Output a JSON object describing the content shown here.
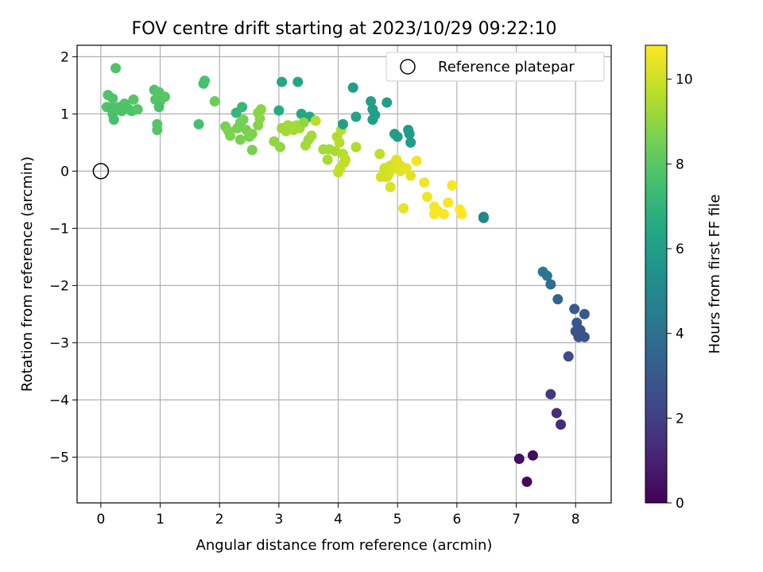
{
  "chart_data": {
    "type": "scatter",
    "title": "FOV centre drift starting at 2023/10/29 09:22:10",
    "xlabel": "Angular distance from reference (arcmin)",
    "ylabel": "Rotation from reference (arcmin)",
    "xlim": [
      -0.4,
      8.6
    ],
    "ylim": [
      -5.8,
      2.2
    ],
    "xticks": [
      0,
      1,
      2,
      3,
      4,
      5,
      6,
      7,
      8
    ],
    "yticks": [
      -5,
      -4,
      -3,
      -2,
      -1,
      0,
      1,
      2
    ],
    "grid": true,
    "legend": {
      "position": "top-right",
      "entries": [
        "Reference platepar"
      ]
    },
    "reference": {
      "x": 0,
      "y": 0,
      "label": "Reference platepar"
    },
    "colorbar": {
      "label": "Hours from first FF file",
      "range": [
        0,
        10.8
      ],
      "ticks": [
        0,
        2,
        4,
        6,
        8,
        10
      ],
      "colormap": "viridis"
    },
    "points": [
      {
        "x": 0.25,
        "y": 1.8,
        "h": 7.8
      },
      {
        "x": 0.12,
        "y": 1.33,
        "h": 7.8
      },
      {
        "x": 0.2,
        "y": 1.27,
        "h": 7.8
      },
      {
        "x": 0.1,
        "y": 1.12,
        "h": 7.8
      },
      {
        "x": 0.2,
        "y": 1.1,
        "h": 7.7
      },
      {
        "x": 0.3,
        "y": 1.12,
        "h": 7.8
      },
      {
        "x": 0.4,
        "y": 1.18,
        "h": 7.8
      },
      {
        "x": 0.45,
        "y": 1.1,
        "h": 7.8
      },
      {
        "x": 0.55,
        "y": 1.25,
        "h": 7.9
      },
      {
        "x": 0.52,
        "y": 1.05,
        "h": 7.8
      },
      {
        "x": 0.62,
        "y": 1.08,
        "h": 7.9
      },
      {
        "x": 0.2,
        "y": 1.0,
        "h": 7.7
      },
      {
        "x": 0.22,
        "y": 0.9,
        "h": 7.6
      },
      {
        "x": 0.35,
        "y": 1.05,
        "h": 7.7
      },
      {
        "x": 0.9,
        "y": 1.42,
        "h": 7.8
      },
      {
        "x": 0.98,
        "y": 1.38,
        "h": 7.9
      },
      {
        "x": 0.92,
        "y": 1.25,
        "h": 7.9
      },
      {
        "x": 1.0,
        "y": 1.22,
        "h": 7.9
      },
      {
        "x": 1.08,
        "y": 1.3,
        "h": 8.0
      },
      {
        "x": 0.98,
        "y": 1.12,
        "h": 7.7
      },
      {
        "x": 0.95,
        "y": 0.82,
        "h": 7.9
      },
      {
        "x": 0.95,
        "y": 0.72,
        "h": 7.9
      },
      {
        "x": 1.75,
        "y": 1.58,
        "h": 7.7
      },
      {
        "x": 1.73,
        "y": 1.53,
        "h": 7.6
      },
      {
        "x": 1.92,
        "y": 1.22,
        "h": 8.4
      },
      {
        "x": 1.65,
        "y": 0.82,
        "h": 7.6
      },
      {
        "x": 2.1,
        "y": 0.78,
        "h": 8.6
      },
      {
        "x": 2.15,
        "y": 0.7,
        "h": 8.7
      },
      {
        "x": 2.18,
        "y": 0.62,
        "h": 8.7
      },
      {
        "x": 2.3,
        "y": 0.75,
        "h": 8.6
      },
      {
        "x": 2.35,
        "y": 0.85,
        "h": 8.5
      },
      {
        "x": 2.4,
        "y": 0.9,
        "h": 8.5
      },
      {
        "x": 2.28,
        "y": 1.02,
        "h": 7.1
      },
      {
        "x": 2.38,
        "y": 1.12,
        "h": 7.2
      },
      {
        "x": 2.45,
        "y": 0.72,
        "h": 8.6
      },
      {
        "x": 2.35,
        "y": 0.55,
        "h": 8.6
      },
      {
        "x": 2.5,
        "y": 0.6,
        "h": 8.6
      },
      {
        "x": 2.55,
        "y": 0.65,
        "h": 8.7
      },
      {
        "x": 2.55,
        "y": 0.37,
        "h": 8.6
      },
      {
        "x": 2.65,
        "y": 1.02,
        "h": 8.9
      },
      {
        "x": 2.7,
        "y": 1.08,
        "h": 8.9
      },
      {
        "x": 2.68,
        "y": 0.92,
        "h": 8.9
      },
      {
        "x": 2.65,
        "y": 0.8,
        "h": 8.8
      },
      {
        "x": 3.0,
        "y": 1.06,
        "h": 6.6
      },
      {
        "x": 3.05,
        "y": 1.56,
        "h": 6.5
      },
      {
        "x": 3.32,
        "y": 1.56,
        "h": 6.5
      },
      {
        "x": 2.92,
        "y": 0.52,
        "h": 9.0
      },
      {
        "x": 3.02,
        "y": 0.42,
        "h": 9.0
      },
      {
        "x": 3.05,
        "y": 0.75,
        "h": 9.2
      },
      {
        "x": 3.12,
        "y": 0.7,
        "h": 9.3
      },
      {
        "x": 3.15,
        "y": 0.8,
        "h": 9.3
      },
      {
        "x": 3.2,
        "y": 0.78,
        "h": 9.3
      },
      {
        "x": 3.25,
        "y": 0.72,
        "h": 9.3
      },
      {
        "x": 3.3,
        "y": 0.8,
        "h": 9.3
      },
      {
        "x": 3.38,
        "y": 1.0,
        "h": 6.4
      },
      {
        "x": 3.35,
        "y": 0.75,
        "h": 9.3
      },
      {
        "x": 3.45,
        "y": 0.92,
        "h": 6.4
      },
      {
        "x": 3.52,
        "y": 0.95,
        "h": 6.5
      },
      {
        "x": 3.42,
        "y": 0.85,
        "h": 9.0
      },
      {
        "x": 3.5,
        "y": 0.55,
        "h": 9.2
      },
      {
        "x": 3.55,
        "y": 0.62,
        "h": 9.3
      },
      {
        "x": 3.45,
        "y": 0.45,
        "h": 9.3
      },
      {
        "x": 3.62,
        "y": 0.88,
        "h": 9.6
      },
      {
        "x": 3.75,
        "y": 0.38,
        "h": 9.3
      },
      {
        "x": 3.85,
        "y": 0.38,
        "h": 9.3
      },
      {
        "x": 3.82,
        "y": 0.2,
        "h": 9.4
      },
      {
        "x": 3.95,
        "y": 0.35,
        "h": 9.4
      },
      {
        "x": 3.98,
        "y": 0.6,
        "h": 9.5
      },
      {
        "x": 4.05,
        "y": 0.72,
        "h": 9.6
      },
      {
        "x": 4.02,
        "y": 0.5,
        "h": 9.6
      },
      {
        "x": 4.08,
        "y": 0.3,
        "h": 9.6
      },
      {
        "x": 4.1,
        "y": 0.15,
        "h": 9.7
      },
      {
        "x": 4.03,
        "y": 0.05,
        "h": 9.8
      },
      {
        "x": 4.0,
        "y": -0.02,
        "h": 9.8
      },
      {
        "x": 4.12,
        "y": 0.2,
        "h": 9.7
      },
      {
        "x": 4.3,
        "y": 0.42,
        "h": 9.5
      },
      {
        "x": 4.08,
        "y": 0.82,
        "h": 6.1
      },
      {
        "x": 4.25,
        "y": 1.46,
        "h": 6.0
      },
      {
        "x": 4.3,
        "y": 0.95,
        "h": 6.3
      },
      {
        "x": 4.55,
        "y": 1.22,
        "h": 6.1
      },
      {
        "x": 4.58,
        "y": 1.08,
        "h": 6.0
      },
      {
        "x": 4.62,
        "y": 0.98,
        "h": 6.0
      },
      {
        "x": 4.58,
        "y": 0.9,
        "h": 6.1
      },
      {
        "x": 4.82,
        "y": 1.2,
        "h": 6.0
      },
      {
        "x": 4.95,
        "y": 0.65,
        "h": 6.1
      },
      {
        "x": 5.0,
        "y": 0.6,
        "h": 6.0
      },
      {
        "x": 5.18,
        "y": 0.72,
        "h": 5.9
      },
      {
        "x": 5.2,
        "y": 0.65,
        "h": 5.9
      },
      {
        "x": 5.22,
        "y": 0.5,
        "h": 5.9
      },
      {
        "x": 4.7,
        "y": 0.3,
        "h": 9.7
      },
      {
        "x": 4.78,
        "y": 0.05,
        "h": 10.0
      },
      {
        "x": 4.72,
        "y": -0.1,
        "h": 10.0
      },
      {
        "x": 4.85,
        "y": -0.05,
        "h": 10.1
      },
      {
        "x": 4.82,
        "y": -0.1,
        "h": 10.1
      },
      {
        "x": 4.88,
        "y": 0.1,
        "h": 10.1
      },
      {
        "x": 4.95,
        "y": 0.05,
        "h": 10.2
      },
      {
        "x": 4.98,
        "y": 0.2,
        "h": 10.3
      },
      {
        "x": 5.05,
        "y": 0.1,
        "h": 10.3
      },
      {
        "x": 5.05,
        "y": 0.0,
        "h": 10.3
      },
      {
        "x": 5.15,
        "y": 0.05,
        "h": 10.4
      },
      {
        "x": 5.22,
        "y": -0.08,
        "h": 10.3
      },
      {
        "x": 4.88,
        "y": -0.28,
        "h": 10.2
      },
      {
        "x": 5.1,
        "y": -0.65,
        "h": 10.4
      },
      {
        "x": 5.32,
        "y": 0.18,
        "h": 10.6
      },
      {
        "x": 5.45,
        "y": -0.2,
        "h": 10.6
      },
      {
        "x": 5.5,
        "y": -0.45,
        "h": 10.6
      },
      {
        "x": 5.62,
        "y": -0.62,
        "h": 10.7
      },
      {
        "x": 5.62,
        "y": -0.75,
        "h": 10.7
      },
      {
        "x": 5.68,
        "y": -0.7,
        "h": 10.7
      },
      {
        "x": 5.78,
        "y": -0.75,
        "h": 10.7
      },
      {
        "x": 5.85,
        "y": -0.55,
        "h": 10.7
      },
      {
        "x": 5.92,
        "y": -0.25,
        "h": 10.7
      },
      {
        "x": 6.05,
        "y": -0.67,
        "h": 10.8
      },
      {
        "x": 6.08,
        "y": -0.75,
        "h": 10.8
      },
      {
        "x": 6.45,
        "y": -0.8,
        "h": 4.9
      },
      {
        "x": 6.45,
        "y": -0.82,
        "h": 4.9
      },
      {
        "x": 7.45,
        "y": -1.76,
        "h": 4.4
      },
      {
        "x": 7.52,
        "y": -1.83,
        "h": 4.2
      },
      {
        "x": 7.58,
        "y": -1.98,
        "h": 3.9
      },
      {
        "x": 7.7,
        "y": -2.24,
        "h": 3.5
      },
      {
        "x": 7.98,
        "y": -2.41,
        "h": 3.1
      },
      {
        "x": 8.02,
        "y": -2.65,
        "h": 2.9
      },
      {
        "x": 8.15,
        "y": -2.5,
        "h": 3.0
      },
      {
        "x": 8.0,
        "y": -2.8,
        "h": 2.8
      },
      {
        "x": 8.08,
        "y": -2.78,
        "h": 2.8
      },
      {
        "x": 8.05,
        "y": -2.9,
        "h": 2.7
      },
      {
        "x": 8.15,
        "y": -2.9,
        "h": 2.8
      },
      {
        "x": 7.88,
        "y": -3.24,
        "h": 2.5
      },
      {
        "x": 7.58,
        "y": -3.9,
        "h": 1.7
      },
      {
        "x": 7.68,
        "y": -4.23,
        "h": 1.4
      },
      {
        "x": 7.75,
        "y": -4.43,
        "h": 1.3
      },
      {
        "x": 7.05,
        "y": -5.03,
        "h": 0.3
      },
      {
        "x": 7.28,
        "y": -4.97,
        "h": 0.3
      },
      {
        "x": 7.18,
        "y": -5.43,
        "h": 0.2
      }
    ]
  }
}
